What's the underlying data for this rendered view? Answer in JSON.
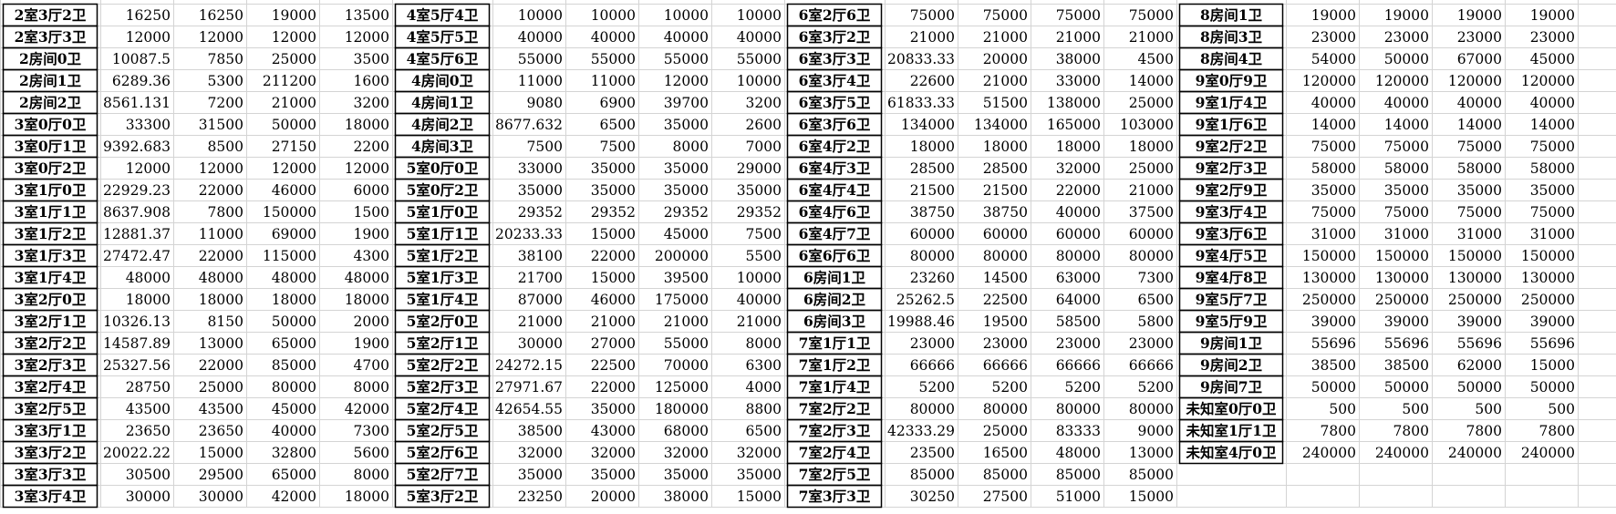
{
  "blocks": [
    {
      "rows": [
        [
          "2室3厅2卫",
          "16250",
          "16250",
          "19000",
          "13500"
        ],
        [
          "2室3厅3卫",
          "12000",
          "12000",
          "12000",
          "12000"
        ],
        [
          "2房间0卫",
          "10087.5",
          "7850",
          "25000",
          "3500"
        ],
        [
          "2房间1卫",
          "6289.36",
          "5300",
          "211200",
          "1600"
        ],
        [
          "2房间2卫",
          "8561.131",
          "7200",
          "21000",
          "3200"
        ],
        [
          "3室0厅0卫",
          "33300",
          "31500",
          "50000",
          "18000"
        ],
        [
          "3室0厅1卫",
          "9392.683",
          "8500",
          "27150",
          "2200"
        ],
        [
          "3室0厅2卫",
          "12000",
          "12000",
          "12000",
          "12000"
        ],
        [
          "3室1厅0卫",
          "22929.23",
          "22000",
          "46000",
          "6000"
        ],
        [
          "3室1厅1卫",
          "8637.908",
          "7800",
          "150000",
          "1500"
        ],
        [
          "3室1厅2卫",
          "12881.37",
          "11000",
          "69000",
          "1900"
        ],
        [
          "3室1厅3卫",
          "27472.47",
          "22000",
          "115000",
          "4300"
        ],
        [
          "3室1厅4卫",
          "48000",
          "48000",
          "48000",
          "48000"
        ],
        [
          "3室2厅0卫",
          "18000",
          "18000",
          "18000",
          "18000"
        ],
        [
          "3室2厅1卫",
          "10326.13",
          "8150",
          "50000",
          "2000"
        ],
        [
          "3室2厅2卫",
          "14587.89",
          "13000",
          "65000",
          "1900"
        ],
        [
          "3室2厅3卫",
          "25327.56",
          "22000",
          "85000",
          "4700"
        ],
        [
          "3室2厅4卫",
          "28750",
          "25000",
          "80000",
          "8000"
        ],
        [
          "3室2厅5卫",
          "43500",
          "43500",
          "45000",
          "42000"
        ],
        [
          "3室3厅1卫",
          "23650",
          "23650",
          "40000",
          "7300"
        ],
        [
          "3室3厅2卫",
          "20022.22",
          "15000",
          "32800",
          "5600"
        ],
        [
          "3室3厅3卫",
          "30500",
          "29500",
          "65000",
          "8000"
        ],
        [
          "3室3厅4卫",
          "30000",
          "30000",
          "42000",
          "18000"
        ]
      ]
    },
    {
      "rows": [
        [
          "4室5厅4卫",
          "10000",
          "10000",
          "10000",
          "10000"
        ],
        [
          "4室5厅5卫",
          "40000",
          "40000",
          "40000",
          "40000"
        ],
        [
          "4室5厅6卫",
          "55000",
          "55000",
          "55000",
          "55000"
        ],
        [
          "4房间0卫",
          "11000",
          "11000",
          "12000",
          "10000"
        ],
        [
          "4房间1卫",
          "9080",
          "6900",
          "39700",
          "3200"
        ],
        [
          "4房间2卫",
          "8677.632",
          "6500",
          "35000",
          "2600"
        ],
        [
          "4房间3卫",
          "7500",
          "7500",
          "8000",
          "7000"
        ],
        [
          "5室0厅0卫",
          "33000",
          "35000",
          "35000",
          "29000"
        ],
        [
          "5室0厅2卫",
          "35000",
          "35000",
          "35000",
          "35000"
        ],
        [
          "5室1厅0卫",
          "29352",
          "29352",
          "29352",
          "29352"
        ],
        [
          "5室1厅1卫",
          "20233.33",
          "15000",
          "45000",
          "7500"
        ],
        [
          "5室1厅2卫",
          "38100",
          "22000",
          "200000",
          "5500"
        ],
        [
          "5室1厅3卫",
          "21700",
          "15000",
          "39500",
          "10000"
        ],
        [
          "5室1厅4卫",
          "87000",
          "46000",
          "175000",
          "40000"
        ],
        [
          "5室2厅0卫",
          "21000",
          "21000",
          "21000",
          "21000"
        ],
        [
          "5室2厅1卫",
          "30000",
          "27000",
          "55000",
          "8000"
        ],
        [
          "5室2厅2卫",
          "24272.15",
          "22500",
          "70000",
          "6300"
        ],
        [
          "5室2厅3卫",
          "27971.67",
          "22000",
          "125000",
          "4000"
        ],
        [
          "5室2厅4卫",
          "42654.55",
          "35000",
          "180000",
          "8800"
        ],
        [
          "5室2厅5卫",
          "38500",
          "43000",
          "68000",
          "6500"
        ],
        [
          "5室2厅6卫",
          "32000",
          "32000",
          "32000",
          "32000"
        ],
        [
          "5室2厅7卫",
          "35000",
          "35000",
          "35000",
          "35000"
        ],
        [
          "5室3厅2卫",
          "23250",
          "20000",
          "38000",
          "15000"
        ]
      ]
    },
    {
      "rows": [
        [
          "6室2厅6卫",
          "75000",
          "75000",
          "75000",
          "75000"
        ],
        [
          "6室3厅2卫",
          "21000",
          "21000",
          "21000",
          "21000"
        ],
        [
          "6室3厅3卫",
          "20833.33",
          "20000",
          "38000",
          "4500"
        ],
        [
          "6室3厅4卫",
          "22600",
          "21000",
          "33000",
          "14000"
        ],
        [
          "6室3厅5卫",
          "61833.33",
          "51500",
          "138000",
          "25000"
        ],
        [
          "6室3厅6卫",
          "134000",
          "134000",
          "165000",
          "103000"
        ],
        [
          "6室4厅2卫",
          "18000",
          "18000",
          "18000",
          "18000"
        ],
        [
          "6室4厅3卫",
          "28500",
          "28500",
          "32000",
          "25000"
        ],
        [
          "6室4厅4卫",
          "21500",
          "21500",
          "22000",
          "21000"
        ],
        [
          "6室4厅6卫",
          "38750",
          "38750",
          "40000",
          "37500"
        ],
        [
          "6室4厅7卫",
          "60000",
          "60000",
          "60000",
          "60000"
        ],
        [
          "6室6厅6卫",
          "80000",
          "80000",
          "80000",
          "80000"
        ],
        [
          "6房间1卫",
          "23260",
          "14500",
          "63000",
          "7300"
        ],
        [
          "6房间2卫",
          "25262.5",
          "22500",
          "64000",
          "6500"
        ],
        [
          "6房间3卫",
          "19988.46",
          "19500",
          "58500",
          "5800"
        ],
        [
          "7室1厅1卫",
          "23000",
          "23000",
          "23000",
          "23000"
        ],
        [
          "7室1厅2卫",
          "66666",
          "66666",
          "66666",
          "66666"
        ],
        [
          "7室1厅4卫",
          "5200",
          "5200",
          "5200",
          "5200"
        ],
        [
          "7室2厅2卫",
          "80000",
          "80000",
          "80000",
          "80000"
        ],
        [
          "7室2厅3卫",
          "42333.29",
          "25000",
          "83333",
          "9000"
        ],
        [
          "7室2厅4卫",
          "23500",
          "16500",
          "48000",
          "13000"
        ],
        [
          "7室2厅5卫",
          "85000",
          "85000",
          "85000",
          "85000"
        ],
        [
          "7室3厅3卫",
          "30250",
          "27500",
          "51000",
          "15000"
        ]
      ]
    },
    {
      "rows": [
        [
          "8房间1卫",
          "19000",
          "19000",
          "19000",
          "19000"
        ],
        [
          "8房间3卫",
          "23000",
          "23000",
          "23000",
          "23000"
        ],
        [
          "8房间4卫",
          "54000",
          "50000",
          "67000",
          "45000"
        ],
        [
          "9室0厅9卫",
          "120000",
          "120000",
          "120000",
          "120000"
        ],
        [
          "9室1厅4卫",
          "40000",
          "40000",
          "40000",
          "40000"
        ],
        [
          "9室1厅6卫",
          "14000",
          "14000",
          "14000",
          "14000"
        ],
        [
          "9室2厅2卫",
          "75000",
          "75000",
          "75000",
          "75000"
        ],
        [
          "9室2厅3卫",
          "58000",
          "58000",
          "58000",
          "58000"
        ],
        [
          "9室2厅9卫",
          "35000",
          "35000",
          "35000",
          "35000"
        ],
        [
          "9室3厅4卫",
          "75000",
          "75000",
          "75000",
          "75000"
        ],
        [
          "9室3厅6卫",
          "31000",
          "31000",
          "31000",
          "31000"
        ],
        [
          "9室4厅5卫",
          "150000",
          "150000",
          "150000",
          "150000"
        ],
        [
          "9室4厅8卫",
          "130000",
          "130000",
          "130000",
          "130000"
        ],
        [
          "9室5厅7卫",
          "250000",
          "250000",
          "250000",
          "250000"
        ],
        [
          "9室5厅9卫",
          "39000",
          "39000",
          "39000",
          "39000"
        ],
        [
          "9房间1卫",
          "55696",
          "55696",
          "55696",
          "55696"
        ],
        [
          "9房间2卫",
          "38500",
          "38500",
          "62000",
          "15000"
        ],
        [
          "9房间7卫",
          "50000",
          "50000",
          "50000",
          "50000"
        ],
        [
          "未知室0厅0卫",
          "500",
          "500",
          "500",
          "500"
        ],
        [
          "未知室1厅1卫",
          "7800",
          "7800",
          "7800",
          "7800"
        ],
        [
          "未知室4厅0卫",
          "240000",
          "240000",
          "240000",
          "240000"
        ]
      ]
    }
  ]
}
